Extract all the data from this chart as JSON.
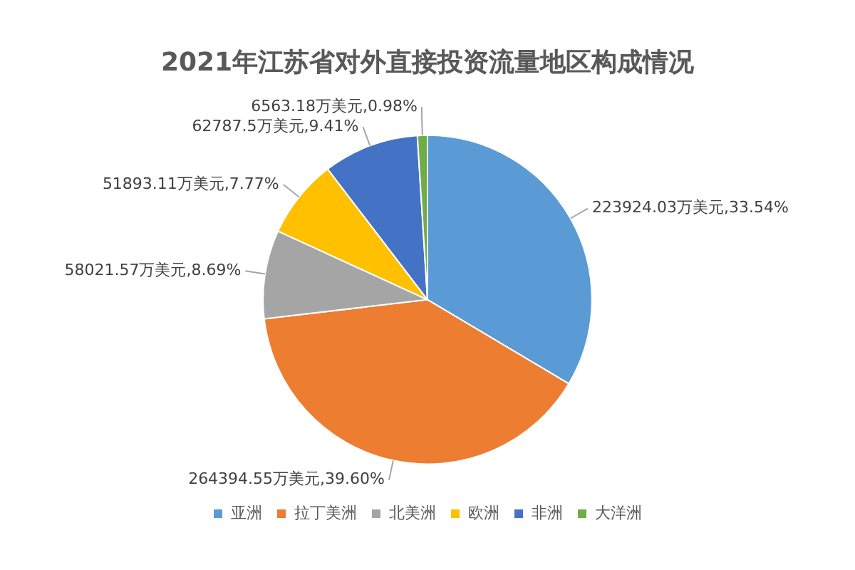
{
  "chart_data": {
    "type": "pie",
    "title": "2021年江苏省对外直接投资流量地区构成情况",
    "categories": [
      "亚洲",
      "拉丁美洲",
      "北美洲",
      "欧洲",
      "非洲",
      "大洋洲"
    ],
    "values": [
      223924.03,
      264394.55,
      58021.57,
      51893.11,
      62787.5,
      6563.18
    ],
    "colors": [
      "#5b9bd5",
      "#ed7d31",
      "#a5a5a5",
      "#ffc000",
      "#4472c4",
      "#70ad47"
    ],
    "value_labels": [
      "223924.03万美元,33.54%",
      "264394.55万美元,39.60%",
      "58021.57万美元,8.69%",
      "51893.11万美元,7.77%",
      "62787.5万美元,9.41%",
      "6563.18万美元,0.98%"
    ],
    "legend": "bottom"
  }
}
